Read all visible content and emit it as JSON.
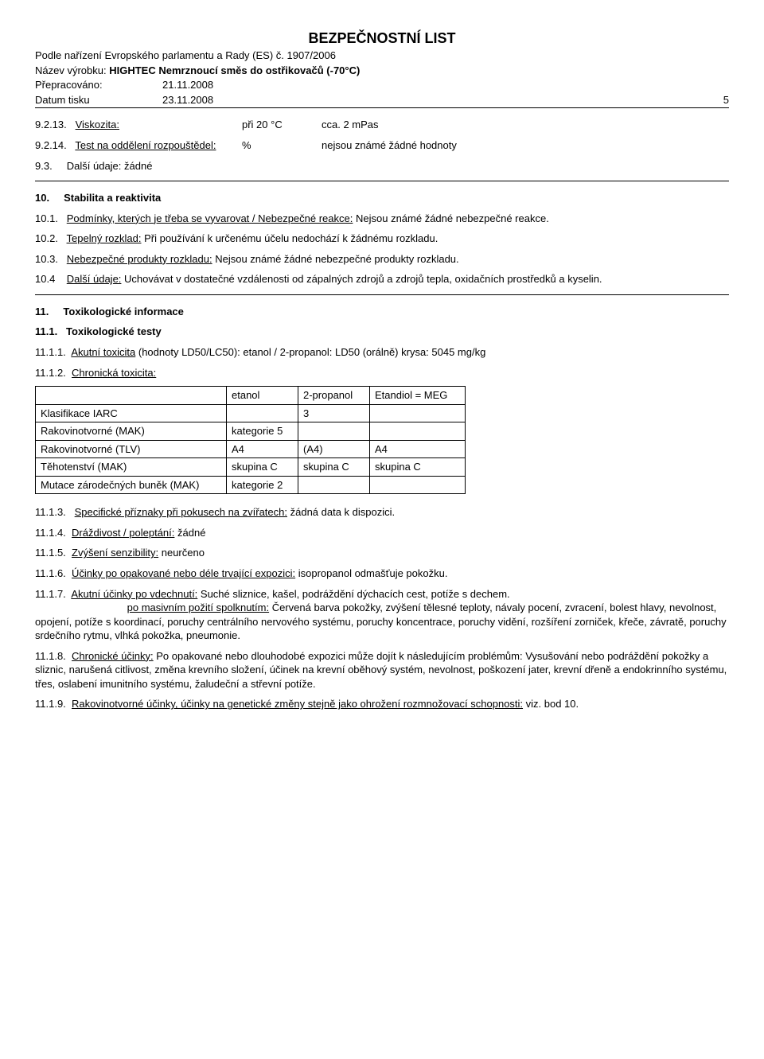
{
  "header": {
    "title": "BEZPEČNOSTNÍ LIST",
    "regulation": "Podle nařízení Evropského parlamentu a Rady (ES) č. 1907/2006",
    "product_label": "Název výrobku:",
    "product_name": "HIGHTEC Nemrznoucí směs do ostřikovačů (-70°C)",
    "revised_label": "Přepracováno:",
    "revised_date": "21.11.2008",
    "printed_label": "Datum tisku",
    "printed_date": "23.11.2008",
    "page_num": "5"
  },
  "s9213": {
    "num": "9.2.13.",
    "label": "Viskozita:",
    "cond": "při 20 °C",
    "val": "cca. 2 mPas"
  },
  "s9214": {
    "num": "9.2.14.",
    "label": "Test na oddělení rozpouštědel:",
    "unit": "%",
    "val": "nejsou známé žádné hodnoty"
  },
  "s93": {
    "num": "9.3.",
    "text": "Další údaje: žádné"
  },
  "s10": {
    "num": "10.",
    "title": "Stabilita a reaktivita"
  },
  "s101": {
    "num": "10.1.",
    "label": "Podmínky, kterých je třeba se vyvarovat / Nebezpečné reakce:",
    "text": " Nejsou známé žádné nebezpečné reakce."
  },
  "s102": {
    "num": "10.2.",
    "label": "Tepelný rozklad:",
    "text": " Při používání k určenému účelu nedochází k žádnému rozkladu."
  },
  "s103": {
    "num": "10.3.",
    "label": "Nebezpečné produkty rozkladu:",
    "text": " Nejsou známé žádné nebezpečné produkty rozkladu."
  },
  "s104": {
    "num": "10.4",
    "label": "Další údaje:",
    "text": " Uchovávat v dostatečné vzdálenosti od zápalných zdrojů a zdrojů tepla, oxidačních prostředků a kyselin."
  },
  "s11": {
    "num": "11.",
    "title": "Toxikologické informace"
  },
  "s111": {
    "num": "11.1.",
    "title": "Toxikologické testy"
  },
  "s1111": {
    "num": "11.1.1.",
    "label": "Akutní toxicita",
    "text": " (hodnoty LD50/LC50): etanol / 2-propanol: LD50 (orálně) krysa: 5045 mg/kg"
  },
  "s1112": {
    "num": "11.1.2.",
    "label": "Chronická toxicita:"
  },
  "table": {
    "headers": [
      "",
      "etanol",
      "2-propanol",
      "Etandiol = MEG"
    ],
    "rows": [
      [
        "Klasifikace IARC",
        "",
        "3",
        ""
      ],
      [
        "Rakovinotvorné (MAK)",
        "kategorie 5",
        "",
        ""
      ],
      [
        "Rakovinotvorné (TLV)",
        "A4",
        "(A4)",
        "A4"
      ],
      [
        "Těhotenství (MAK)",
        "skupina C",
        "skupina C",
        "skupina C"
      ],
      [
        "Mutace zárodečných buněk (MAK)",
        "kategorie 2",
        "",
        ""
      ]
    ],
    "col_widths": [
      "240px",
      "90px",
      "90px",
      "120px"
    ]
  },
  "s1113": {
    "num": "11.1.3.",
    "label": "Specifické příznaky při pokusech na zvířatech:",
    "text": " žádná data k dispozici."
  },
  "s1114": {
    "num": "11.1.4.",
    "label": "Dráždivost / poleptání:",
    "text": " žádné"
  },
  "s1115": {
    "num": "11.1.5.",
    "label": "Zvýšení senzibility:",
    "text": " neurčeno"
  },
  "s1116": {
    "num": "11.1.6.",
    "label": "Účinky po opakované nebo déle trvající expozici:",
    "text": " isopropanol odmašťuje pokožku."
  },
  "s1117": {
    "num": "11.1.7.",
    "label": "Akutní účinky po vdechnutí:",
    "text1": " Suché sliznice, kašel, podráždění dýchacích cest, potíže s dechem.",
    "label2": "po masivním požití spolknutím:",
    "text2": " Červená barva pokožky, zvýšení tělesné teploty, návaly pocení, zvracení, bolest hlavy, nevolnost, opojení, potíže s koordinací, poruchy centrálního nervového systému, poruchy koncentrace, poruchy vidění, rozšíření zorniček, křeče, závratě, poruchy srdečního rytmu, vlhká pokožka, pneumonie."
  },
  "s1118": {
    "num": "11.1.8.",
    "label": "Chronické účinky:",
    "text": " Po opakované nebo dlouhodobé expozici může dojít k následujícím problémům: Vysušování nebo podráždění pokožky a sliznic, narušená citlivost, změna krevního složení, účinek na krevní oběhový systém, nevolnost, poškození jater, krevní dřeně a endokrinního systému, třes, oslabení imunitního systému, žaludeční a střevní potíže."
  },
  "s1119": {
    "num": "11.1.9.",
    "label": "Rakovinotvorné účinky, účinky na genetické změny stejně jako ohrožení rozmnožovací schopnosti:",
    "text": " viz. bod 10."
  }
}
